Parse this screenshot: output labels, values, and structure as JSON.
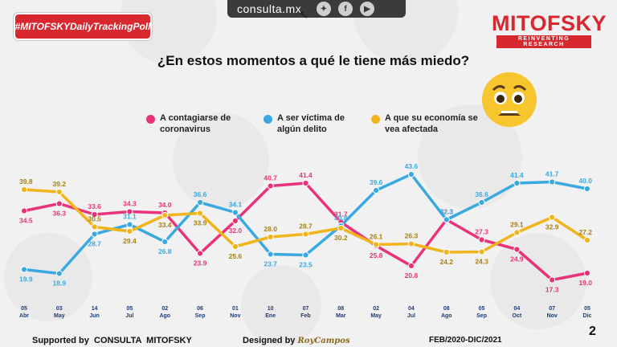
{
  "header": {
    "hashtag": "#MITOFSKYDailyTrackingPoll",
    "site": "consulta.mx",
    "social_icons": [
      "twitter-icon",
      "facebook-icon",
      "youtube-icon"
    ],
    "logo_name": "MITOFSKY",
    "logo_tagline": "REINVENTING RESEARCH"
  },
  "question": "¿En estos momentos a qué le tiene más miedo?",
  "legend": {
    "contagio": "A contagiarse de coronavirus",
    "delito": "A ser víctima de algún delito",
    "economia": "A que su economía se vea afectada"
  },
  "colors": {
    "contagio": "#e8337a",
    "delito": "#3aa9e0",
    "economia": "#f0b41c",
    "brand": "#d7282f"
  },
  "chart_data": {
    "type": "line",
    "title": "¿En estos momentos a qué le tiene más miedo?",
    "x": [
      {
        "day": "05",
        "month": "Abr"
      },
      {
        "day": "03",
        "month": "May"
      },
      {
        "day": "14",
        "month": "Jun"
      },
      {
        "day": "05",
        "month": "Jul"
      },
      {
        "day": "02",
        "month": "Ago"
      },
      {
        "day": "06",
        "month": "Sep"
      },
      {
        "day": "01",
        "month": "Nov"
      },
      {
        "day": "10",
        "month": "Ene"
      },
      {
        "day": "07",
        "month": "Feb"
      },
      {
        "day": "08",
        "month": "Mar"
      },
      {
        "day": "02",
        "month": "May"
      },
      {
        "day": "04",
        "month": "Jul"
      },
      {
        "day": "08",
        "month": "Ago"
      },
      {
        "day": "05",
        "month": "Sep"
      },
      {
        "day": "04",
        "month": "Oct"
      },
      {
        "day": "07",
        "month": "Nov"
      },
      {
        "day": "05",
        "month": "Dic"
      }
    ],
    "ylim": [
      15,
      45
    ],
    "series": [
      {
        "key": "contagio",
        "name": "A contagiarse de coronavirus",
        "values": [
          34.5,
          36.3,
          33.6,
          34.3,
          34.0,
          23.9,
          32.0,
          40.7,
          41.4,
          31.7,
          25.8,
          20.8,
          32.3,
          27.3,
          24.9,
          17.3,
          19.0
        ]
      },
      {
        "key": "delito",
        "name": "A ser víctima de algún delito",
        "values": [
          19.9,
          18.9,
          28.7,
          31.1,
          26.8,
          36.6,
          34.1,
          23.7,
          23.5,
          30.8,
          39.6,
          43.6,
          32.3,
          36.6,
          41.4,
          41.7,
          40.0
        ]
      },
      {
        "key": "economia",
        "name": "A que su economía se vea afectada",
        "values": [
          39.8,
          39.2,
          30.5,
          29.4,
          33.4,
          33.9,
          25.6,
          28.0,
          28.7,
          30.2,
          26.1,
          26.3,
          24.2,
          24.3,
          29.1,
          32.9,
          27.2
        ]
      }
    ]
  },
  "footer": {
    "supported": "Supported by  CONSULTA  MITOFSKY",
    "designed": "Designed by",
    "designer": "RoyCampos",
    "period": "FEB/2020-DIC/2021",
    "page": "2"
  }
}
